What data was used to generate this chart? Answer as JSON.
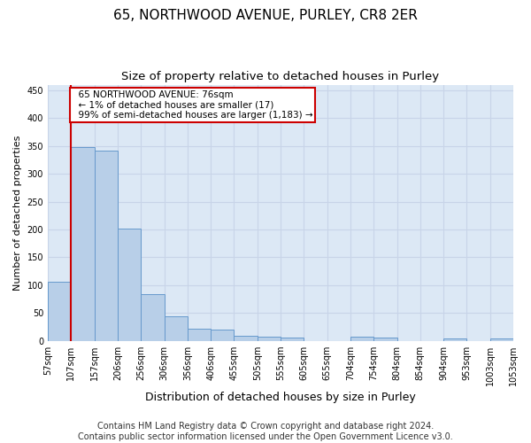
{
  "title1": "65, NORTHWOOD AVENUE, PURLEY, CR8 2ER",
  "title2": "Size of property relative to detached houses in Purley",
  "xlabel": "Distribution of detached houses by size in Purley",
  "ylabel": "Number of detached properties",
  "bar_values": [
    107,
    348,
    342,
    202,
    84,
    45,
    22,
    20,
    10,
    8,
    6,
    0,
    0,
    8,
    6,
    0,
    0,
    4,
    0,
    4
  ],
  "bar_labels": [
    "57sqm",
    "107sqm",
    "157sqm",
    "206sqm",
    "256sqm",
    "306sqm",
    "356sqm",
    "406sqm",
    "455sqm",
    "505sqm",
    "555sqm",
    "605sqm",
    "655sqm",
    "704sqm",
    "754sqm",
    "804sqm",
    "854sqm",
    "904sqm",
    "953sqm",
    "1003sqm",
    "1053sqm"
  ],
  "bar_color": "#b8cfe8",
  "bar_edge_color": "#6699cc",
  "grid_color": "#c8d4e8",
  "background_color": "#dce8f5",
  "annotation_text": "  65 NORTHWOOD AVENUE: 76sqm\n  ← 1% of detached houses are smaller (17)\n  99% of semi-detached houses are larger (1,183) →",
  "annotation_box_color": "white",
  "annotation_box_edge_color": "#cc0000",
  "marker_line_color": "#cc0000",
  "ylim": [
    0,
    460
  ],
  "yticks": [
    0,
    50,
    100,
    150,
    200,
    250,
    300,
    350,
    400,
    450
  ],
  "footer_text": "Contains HM Land Registry data © Crown copyright and database right 2024.\nContains public sector information licensed under the Open Government Licence v3.0.",
  "title1_fontsize": 11,
  "title2_fontsize": 9.5,
  "xlabel_fontsize": 9,
  "ylabel_fontsize": 8,
  "tick_fontsize": 7,
  "footer_fontsize": 7,
  "annotation_fontsize": 7.5
}
